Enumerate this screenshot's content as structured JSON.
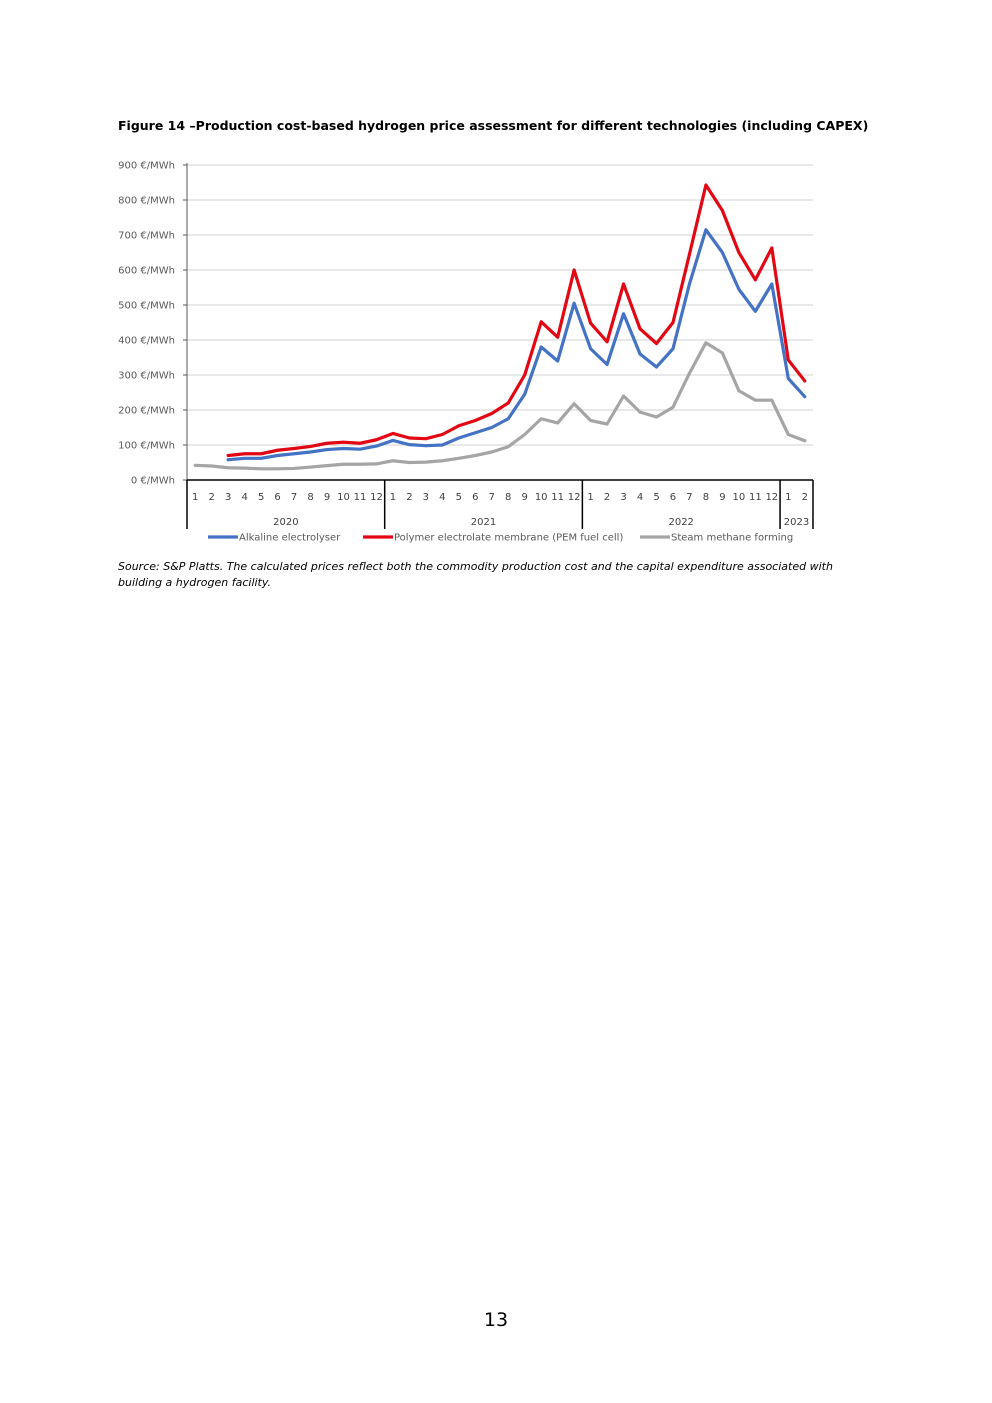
{
  "figure": {
    "title": "Figure 14 –Production cost-based hydrogen price assessment for different technologies (including CAPEX)",
    "caption": "Source: S&P Platts. The calculated prices reflect both the commodity production cost and the capital expenditure associated with building a hydrogen facility.",
    "page_number": "13"
  },
  "chart_data": {
    "type": "line",
    "title": "",
    "xlabel": "",
    "ylabel": "",
    "ylim": [
      0,
      900
    ],
    "y_ticks": [
      0,
      100,
      200,
      300,
      400,
      500,
      600,
      700,
      800,
      900
    ],
    "y_tick_suffix": " €/MWh",
    "grid": true,
    "legend_position": "bottom",
    "categories": [
      "1",
      "2",
      "3",
      "4",
      "5",
      "6",
      "7",
      "8",
      "9",
      "10",
      "11",
      "12",
      "1",
      "2",
      "3",
      "4",
      "5",
      "6",
      "7",
      "8",
      "9",
      "10",
      "11",
      "12",
      "1",
      "2",
      "3",
      "4",
      "5",
      "6",
      "7",
      "8",
      "9",
      "10",
      "11",
      "12",
      "1",
      "2"
    ],
    "year_groups": [
      {
        "label": "2020",
        "months": 12
      },
      {
        "label": "2021",
        "months": 12
      },
      {
        "label": "2022",
        "months": 12
      },
      {
        "label": "2023",
        "months": 2
      }
    ],
    "series": [
      {
        "name": "Alkaline electrolyser",
        "color": "#4472C4",
        "values": [
          null,
          null,
          58,
          62,
          62,
          70,
          75,
          80,
          87,
          90,
          88,
          97,
          113,
          101,
          98,
          100,
          120,
          135,
          150,
          175,
          245,
          380,
          340,
          505,
          375,
          330,
          475,
          360,
          323,
          375,
          560,
          715,
          650,
          545,
          482,
          560,
          290,
          238
        ]
      },
      {
        "name": "Polymer electrolate membrane (PEM fuel cell)",
        "color": "#E30613",
        "values": [
          null,
          null,
          70,
          75,
          75,
          85,
          90,
          96,
          105,
          108,
          105,
          115,
          133,
          120,
          118,
          130,
          155,
          170,
          190,
          220,
          300,
          452,
          408,
          600,
          448,
          395,
          560,
          432,
          390,
          450,
          645,
          843,
          770,
          650,
          572,
          663,
          343,
          283
        ]
      },
      {
        "name": "Steam methane forming",
        "color": "#A5A5A5",
        "values": [
          42,
          40,
          35,
          34,
          32,
          32,
          33,
          37,
          41,
          45,
          45,
          46,
          55,
          50,
          51,
          55,
          62,
          70,
          80,
          95,
          130,
          175,
          163,
          218,
          170,
          160,
          240,
          194,
          180,
          208,
          305,
          392,
          363,
          255,
          228,
          228,
          130,
          112
        ]
      }
    ]
  }
}
